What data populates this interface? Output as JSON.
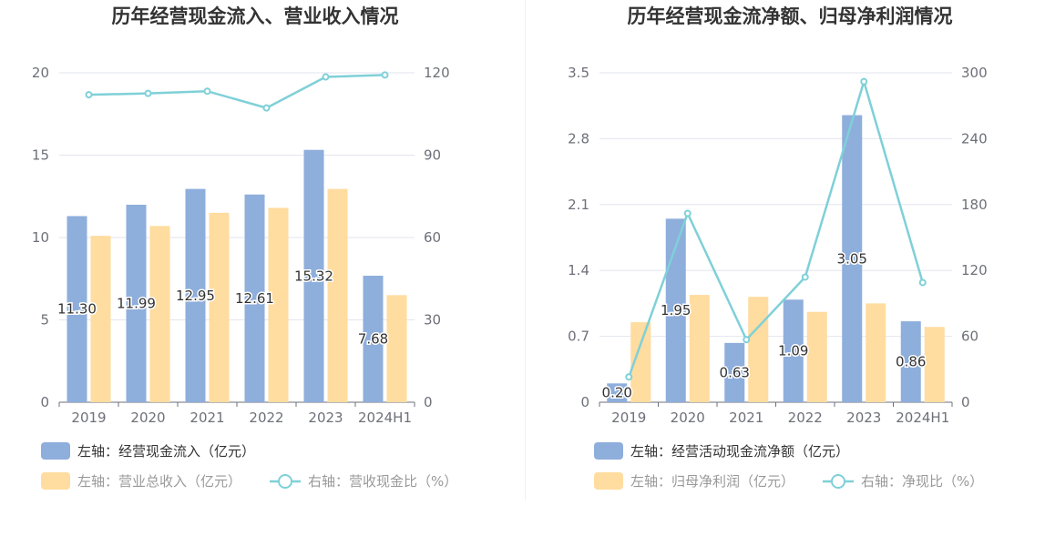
{
  "colors": {
    "bar_primary": "#8eaedc",
    "bar_secondary": "#ffdc9f",
    "line": "#7fd0d8",
    "grid": "#e3e6ef",
    "legend_text_dark": "#333333",
    "legend_text_light": "#999999"
  },
  "chart_data": [
    {
      "type": "bar",
      "title": "历年经营现金流入、营业收入情况",
      "categories": [
        "2019",
        "2020",
        "2021",
        "2022",
        "2023",
        "2024H1"
      ],
      "left_axis": {
        "ylim": [
          0,
          20
        ],
        "ticks": [
          "0",
          "5",
          "10",
          "15",
          "20"
        ]
      },
      "right_axis": {
        "ylim": [
          0,
          120
        ],
        "ticks": [
          "0",
          "30",
          "60",
          "90",
          "120"
        ]
      },
      "series": [
        {
          "name": "左轴：经营现金流入（亿元）",
          "type": "bar",
          "axis": "left",
          "values": [
            11.3,
            11.99,
            12.95,
            12.61,
            15.32,
            7.68
          ],
          "labels": [
            "11.30",
            "11.99",
            "12.95",
            "12.61",
            "15.32",
            "7.68"
          ]
        },
        {
          "name": "左轴：营业总收入（亿元）",
          "type": "bar",
          "axis": "left",
          "values": [
            10.1,
            10.7,
            11.5,
            11.8,
            12.95,
            6.5
          ]
        },
        {
          "name": "右轴：营收现金比（%）",
          "type": "line",
          "axis": "right",
          "values": [
            112,
            112.5,
            113.3,
            107.2,
            118.5,
            119.2
          ]
        }
      ],
      "legend": "bottom-left",
      "grid": true
    },
    {
      "type": "bar",
      "title": "历年经营现金流净额、归母净利润情况",
      "categories": [
        "2019",
        "2020",
        "2021",
        "2022",
        "2023",
        "2024H1"
      ],
      "left_axis": {
        "ylim": [
          0,
          3.5
        ],
        "ticks": [
          "0",
          "0.7",
          "1.4",
          "2.1",
          "2.8",
          "3.5"
        ]
      },
      "right_axis": {
        "ylim": [
          0,
          300
        ],
        "ticks": [
          "0",
          "60",
          "120",
          "180",
          "240",
          "300"
        ]
      },
      "series": [
        {
          "name": "左轴：经营活动现金流净额（亿元）",
          "type": "bar",
          "axis": "left",
          "values": [
            0.2,
            1.95,
            0.63,
            1.09,
            3.05,
            0.86
          ],
          "labels": [
            "0.20",
            "1.95",
            "0.63",
            "1.09",
            "3.05",
            "0.86"
          ]
        },
        {
          "name": "左轴：归母净利润（亿元）",
          "type": "bar",
          "axis": "left",
          "values": [
            0.85,
            1.14,
            1.12,
            0.96,
            1.05,
            0.8
          ]
        },
        {
          "name": "右轴：净现比（%）",
          "type": "line",
          "axis": "right",
          "values": [
            23,
            172,
            57,
            114,
            292,
            109
          ]
        }
      ],
      "legend": "bottom-left",
      "grid": true
    }
  ]
}
